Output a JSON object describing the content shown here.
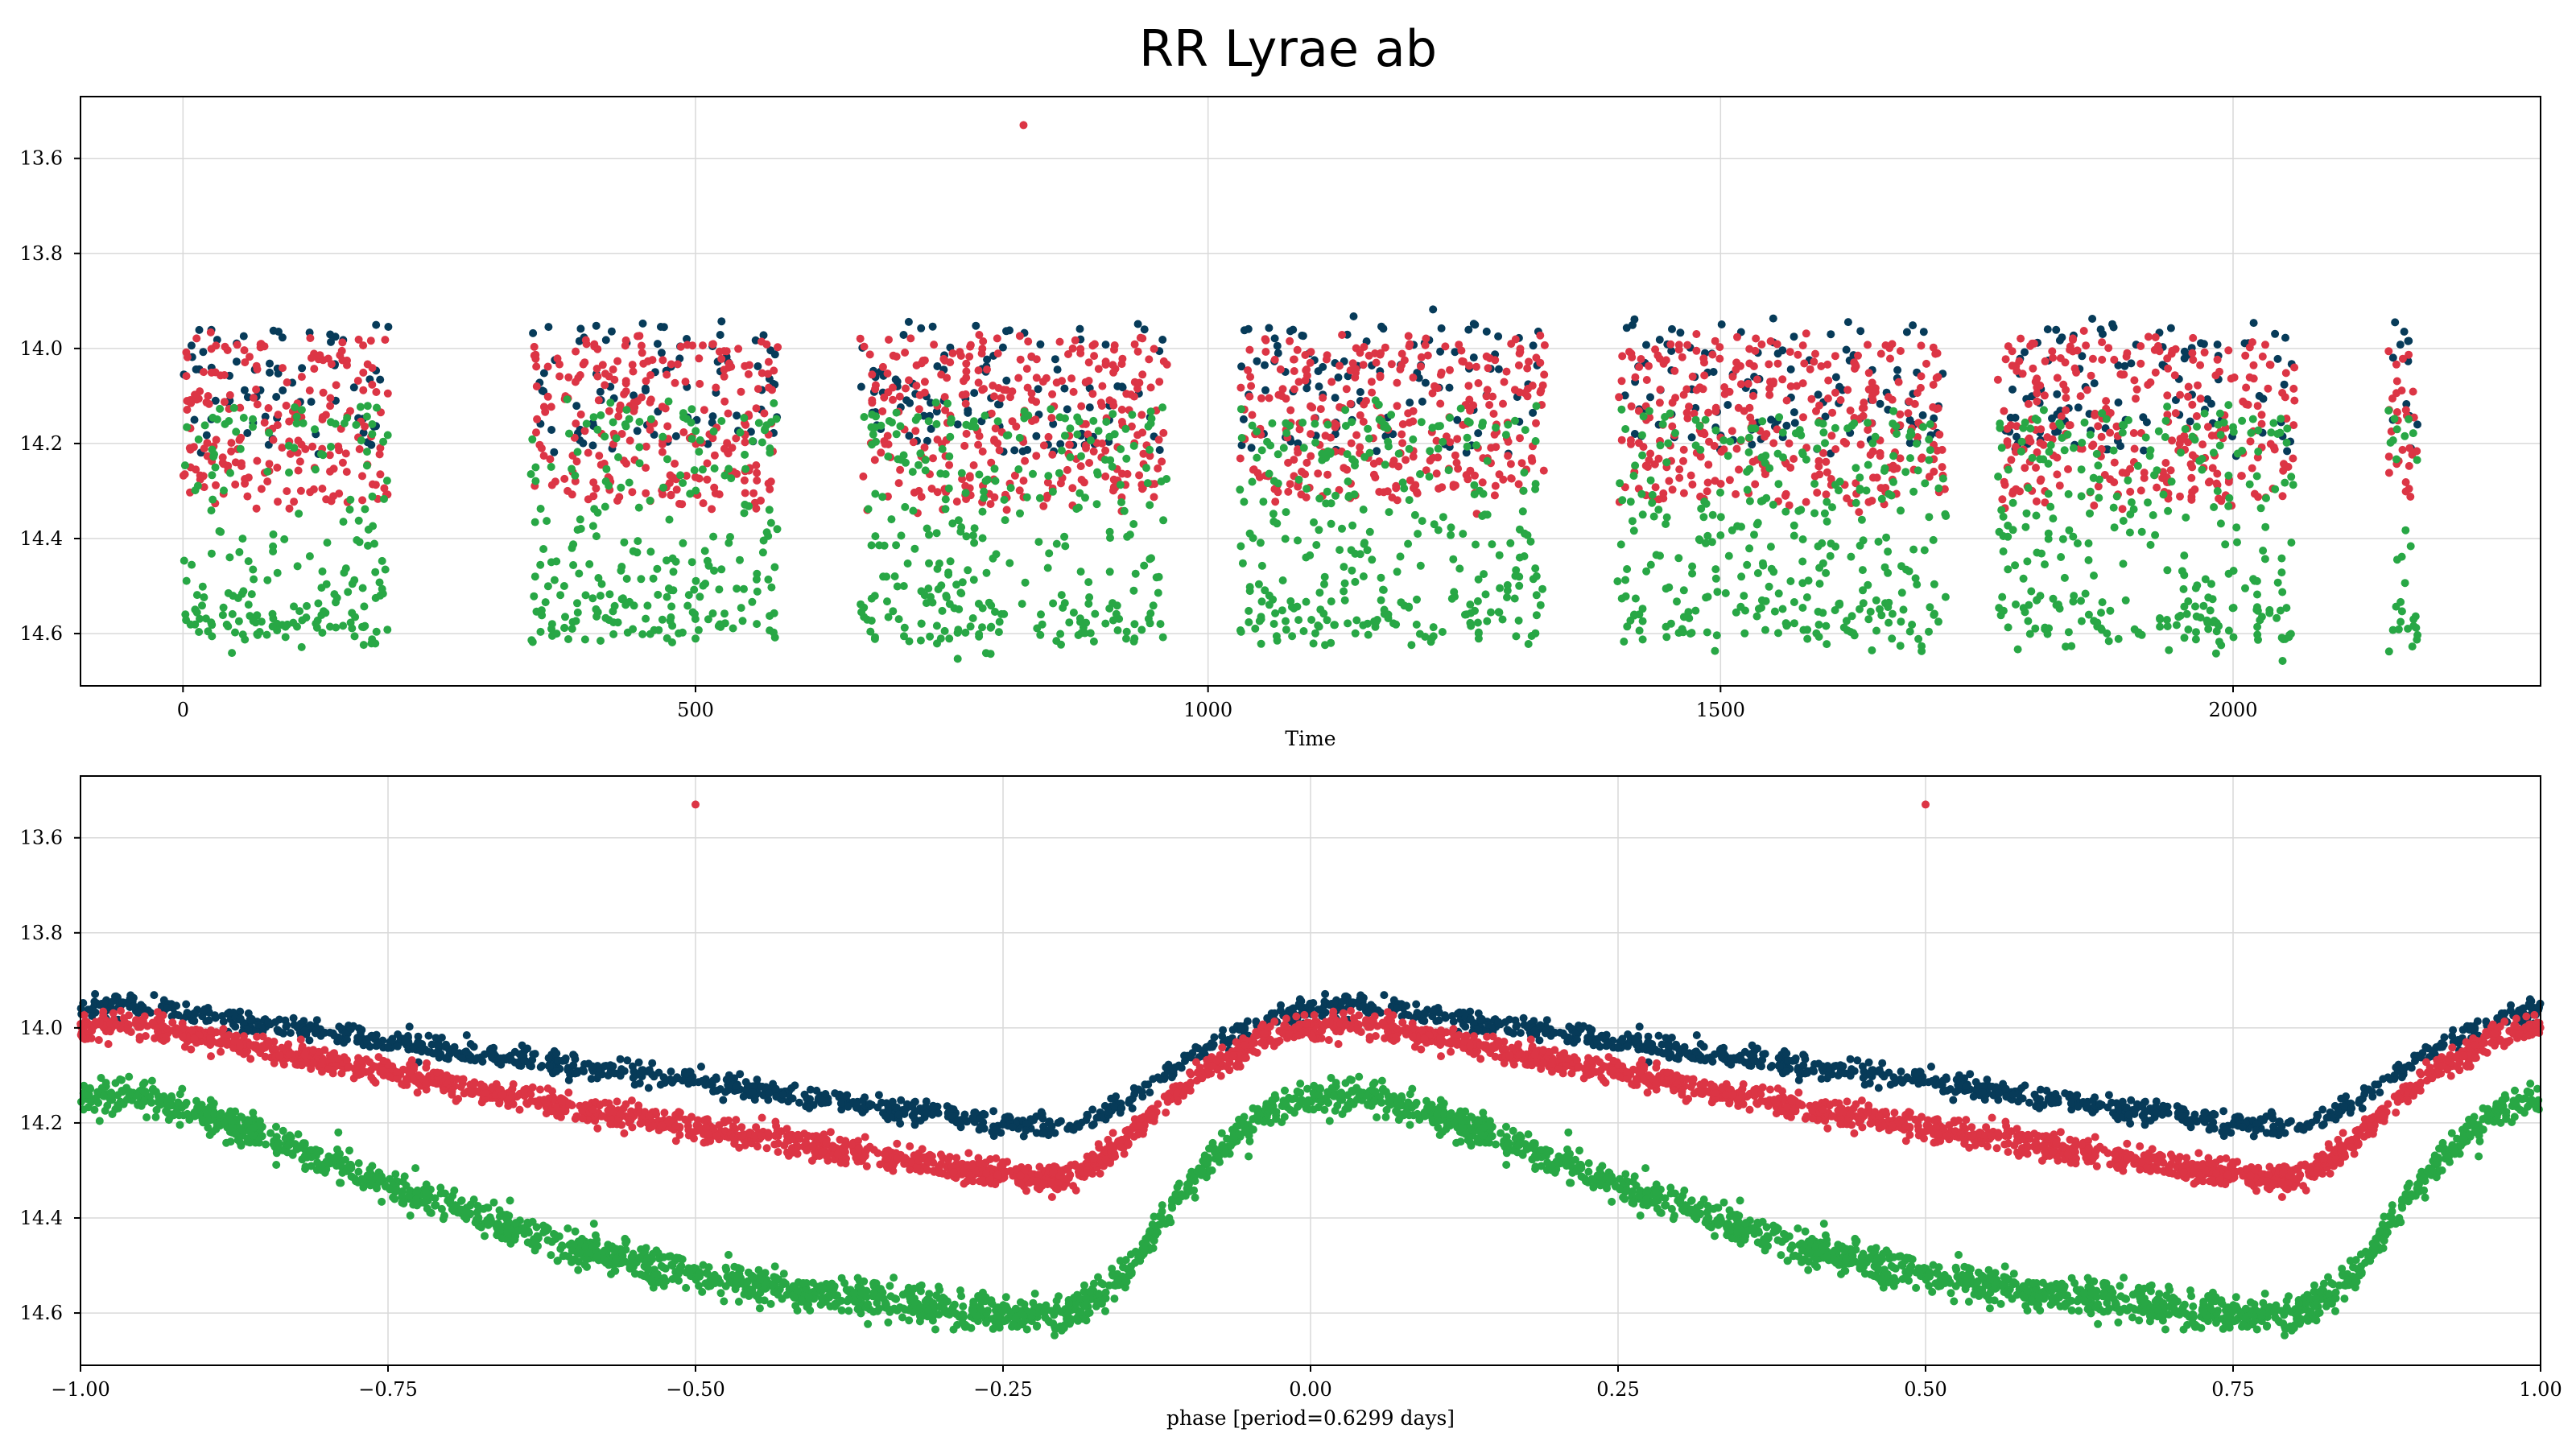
{
  "figure": {
    "title": "RR Lyrae ab"
  },
  "colors": {
    "band_dark": "#073b59",
    "band_red": "#dc3545",
    "band_green": "#28a745"
  },
  "chart_data": [
    {
      "type": "scatter",
      "title": "",
      "xlabel": "Time",
      "ylabel": "",
      "xlim": [
        -100,
        2300
      ],
      "ylim": [
        13.47,
        14.71
      ],
      "y_inverted": true,
      "grid": true,
      "x_ticks": [
        0,
        500,
        1000,
        1500,
        2000
      ],
      "y_ticks": [
        13.6,
        13.8,
        14.0,
        14.2,
        14.4,
        14.6
      ],
      "x_tick_labels": [
        "0",
        "500",
        "1000",
        "1500",
        "2000"
      ],
      "y_tick_labels": [
        "13.6",
        "13.8",
        "14.0",
        "14.2",
        "14.4",
        "14.6"
      ],
      "observing_seasons": [
        {
          "start": 0,
          "end": 200
        },
        {
          "start": 340,
          "end": 580
        },
        {
          "start": 660,
          "end": 960
        },
        {
          "start": 1030,
          "end": 1330
        },
        {
          "start": 1400,
          "end": 1720
        },
        {
          "start": 1770,
          "end": 2060
        },
        {
          "start": 2150,
          "end": 2180
        }
      ],
      "outlier": {
        "x": 820,
        "y": 13.53,
        "band": "band_red"
      }
    },
    {
      "type": "scatter",
      "title": "",
      "xlabel": "phase [period=0.6299 days]",
      "ylabel": "",
      "xlim": [
        -1.0,
        1.0
      ],
      "ylim": [
        13.47,
        14.71
      ],
      "y_inverted": true,
      "grid": true,
      "x_ticks": [
        -1.0,
        -0.75,
        -0.5,
        -0.25,
        0.0,
        0.25,
        0.5,
        0.75,
        1.0
      ],
      "y_ticks": [
        13.6,
        13.8,
        14.0,
        14.2,
        14.4,
        14.6
      ],
      "x_tick_labels": [
        "−1.00",
        "−0.75",
        "−0.50",
        "−0.25",
        "0.00",
        "0.25",
        "0.50",
        "0.75",
        "1.00"
      ],
      "y_tick_labels": [
        "13.6",
        "13.8",
        "14.0",
        "14.2",
        "14.4",
        "14.6"
      ],
      "period_days": 0.6299,
      "series": [
        {
          "color_key": "band_dark",
          "phase": [
            0.0,
            0.04,
            0.1,
            0.2,
            0.3,
            0.4,
            0.5,
            0.6,
            0.7,
            0.75,
            0.8,
            0.85,
            0.88,
            0.92,
            0.96,
            1.0
          ],
          "mag": [
            13.96,
            13.95,
            13.97,
            14.01,
            14.05,
            14.08,
            14.11,
            14.15,
            14.18,
            14.2,
            14.21,
            14.16,
            14.1,
            14.04,
            13.99,
            13.96
          ]
        },
        {
          "color_key": "band_red",
          "phase": [
            0.0,
            0.04,
            0.1,
            0.2,
            0.3,
            0.4,
            0.5,
            0.6,
            0.7,
            0.75,
            0.8,
            0.85,
            0.88,
            0.92,
            0.96,
            1.0
          ],
          "mag": [
            14.0,
            13.99,
            14.02,
            14.07,
            14.12,
            14.17,
            14.21,
            14.25,
            14.29,
            14.31,
            14.32,
            14.24,
            14.16,
            14.08,
            14.02,
            14.0
          ]
        },
        {
          "color_key": "band_green",
          "phase": [
            0.0,
            0.04,
            0.1,
            0.2,
            0.3,
            0.4,
            0.5,
            0.6,
            0.7,
            0.75,
            0.8,
            0.85,
            0.88,
            0.92,
            0.96,
            1.0
          ],
          "mag": [
            14.15,
            14.14,
            14.18,
            14.28,
            14.38,
            14.46,
            14.52,
            14.56,
            14.59,
            14.6,
            14.61,
            14.52,
            14.4,
            14.27,
            14.18,
            14.15
          ]
        }
      ],
      "outliers": [
        {
          "x": -0.5,
          "y": 13.53,
          "band": "band_red"
        },
        {
          "x": 0.5,
          "y": 13.53,
          "band": "band_red"
        }
      ]
    }
  ]
}
